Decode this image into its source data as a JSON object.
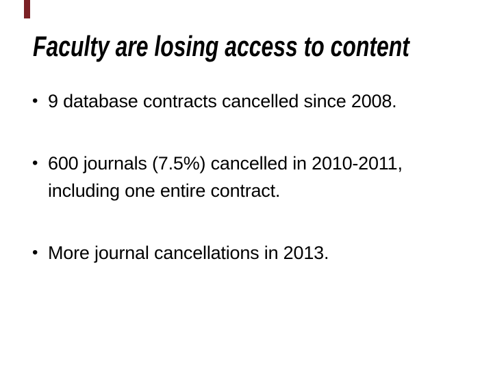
{
  "slide": {
    "title": "Faculty are losing access to content",
    "bullet_char": "•",
    "bullets": [
      {
        "lines": [
          "9 database contracts cancelled since 2008."
        ]
      },
      {
        "lines": [
          "600 journals (7.5%) cancelled in 2010-2011,",
          "including one entire contract."
        ]
      },
      {
        "lines": [
          "More journal cancellations in 2013."
        ]
      }
    ],
    "colors": {
      "background": "#FFFFFF",
      "text": "#000000",
      "accent_bar": "#7B2125"
    }
  }
}
